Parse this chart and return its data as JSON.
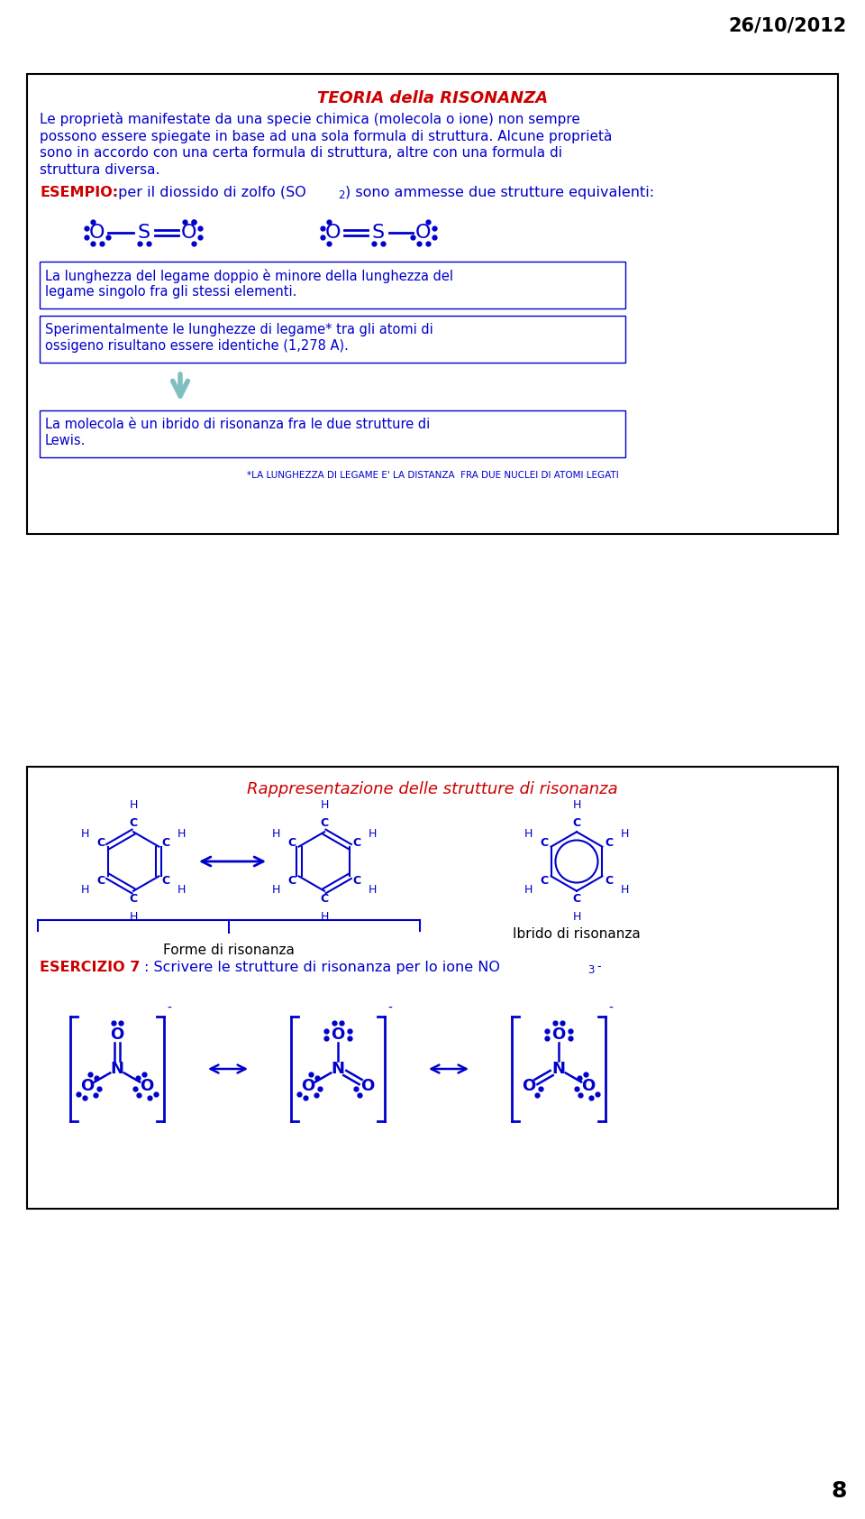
{
  "date_text": "26/10/2012",
  "page_number": "8",
  "bg_color": "#ffffff",
  "blue_color": "#0000cc",
  "red_color": "#cc0000",
  "title1": "TEORIA della RISONANZA",
  "para1_line1": "Le proprietà manifestate da una specie chimica (molecola o ione) non sempre",
  "para1_line2": "possono essere spiegate in base ad una sola formula di struttura. Alcune proprietà",
  "para1_line3": "sono in accordo con una certa formula di struttura, altre con una formula di",
  "para1_line4": "struttura diversa.",
  "esempio_label": "ESEMPIO:",
  "esempio_rest": " per il diossido di zolfo (SO",
  "esempio_sub": "2",
  "esempio_rest2": ") sono ammesse due strutture equivalenti:",
  "box2_text1_line1": "La lunghezza del legame doppio è minore della lunghezza del",
  "box2_text1_line2": "legame singolo fra gli stessi elementi.",
  "box2_text2_line1": "Sperimentalmente le lunghezze di legame* tra gli atomi di",
  "box2_text2_line2": "ossigeno risultano essere identiche (1,278 A).",
  "box3_text_line1": "La molecola è un ibrido di risonanza fra le due strutture di",
  "box3_text_line2": "Lewis.",
  "footnote": "*LA LUNGHEZZA DI LEGAME E' LA DISTANZA  FRA DUE NUCLEI DI ATOMI LEGATI",
  "title2": "Rappresentazione delle strutture di risonanza",
  "forme_label": "Forme di risonanza",
  "ibrido_label": "Ibrido di risonanza",
  "esercizio_label": "ESERCIZIO 7",
  "esercizio_rest": ": Scrivere le strutture di risonanza per lo ione NO",
  "esercizio_sub": "3",
  "esercizio_sup": "-"
}
